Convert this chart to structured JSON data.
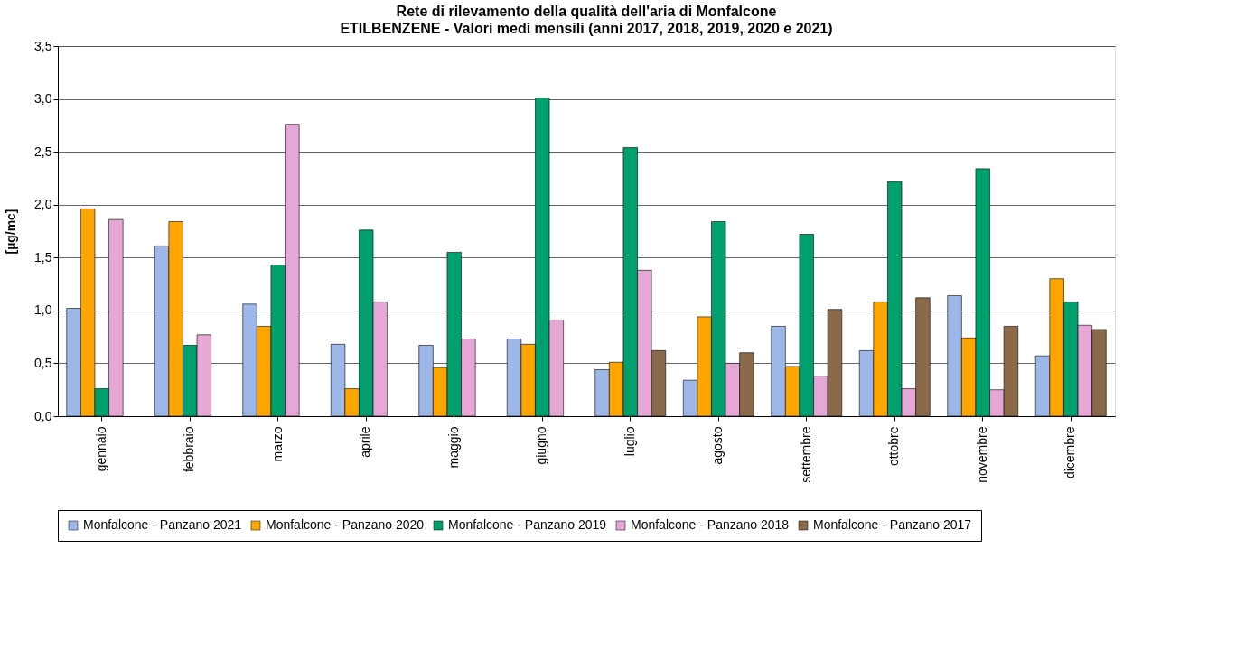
{
  "chart_data": {
    "type": "bar",
    "title": "Rete di rilevamento della qualità dell'aria di Monfalcone",
    "subtitle": "ETILBENZENE - Valori medi mensili (anni 2017, 2018, 2019, 2020 e 2021)",
    "ylabel": "[µg/mc]",
    "categories": [
      "gennaio",
      "febbraio",
      "marzo",
      "aprile",
      "maggio",
      "giugno",
      "luglio",
      "agosto",
      "settembre",
      "ottobre",
      "novembre",
      "dicembre"
    ],
    "series": [
      {
        "name": "Monfalcone - Panzano 2021",
        "color": "#9db8e8",
        "values": [
          1.02,
          1.61,
          1.06,
          0.68,
          0.67,
          0.73,
          0.44,
          0.34,
          0.85,
          0.62,
          1.14,
          0.57
        ]
      },
      {
        "name": "Monfalcone - Panzano 2020",
        "color": "#ffa500",
        "values": [
          1.96,
          1.84,
          0.85,
          0.26,
          0.46,
          0.68,
          0.51,
          0.94,
          0.47,
          1.08,
          0.74,
          1.3
        ]
      },
      {
        "name": "Monfalcone - Panzano 2019",
        "color": "#00a06e",
        "values": [
          0.26,
          0.67,
          1.43,
          1.76,
          1.55,
          3.01,
          2.54,
          1.84,
          1.72,
          2.22,
          2.34,
          1.08
        ]
      },
      {
        "name": "Monfalcone - Panzano 2018",
        "color": "#e6a6d6",
        "values": [
          1.86,
          0.77,
          2.76,
          1.08,
          0.73,
          0.91,
          1.38,
          0.5,
          0.38,
          0.26,
          0.25,
          0.86
        ]
      },
      {
        "name": "Monfalcone - Panzano 2017",
        "color": "#8b6a4a",
        "values": [
          null,
          null,
          null,
          null,
          null,
          null,
          0.62,
          0.6,
          1.01,
          1.12,
          0.85,
          0.82
        ]
      }
    ],
    "ylim": [
      0,
      3.5
    ],
    "yticks": [
      {
        "value": 0,
        "label": "0,0"
      },
      {
        "value": 0.5,
        "label": "0,5"
      },
      {
        "value": 1,
        "label": "1,0"
      },
      {
        "value": 1.5,
        "label": "1,5"
      },
      {
        "value": 2,
        "label": "2,0"
      },
      {
        "value": 2.5,
        "label": "2,5"
      },
      {
        "value": 3,
        "label": "3,0"
      },
      {
        "value": 3.5,
        "label": "3,5"
      }
    ],
    "grid": "y",
    "legend": "bottom"
  }
}
